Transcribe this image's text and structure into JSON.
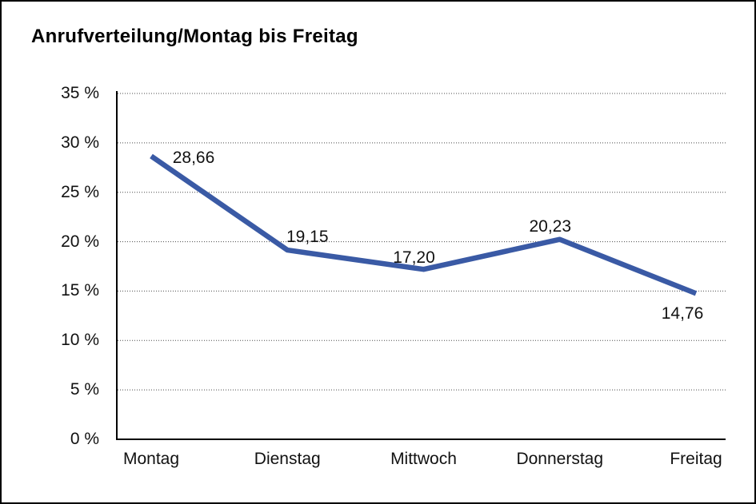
{
  "chart_data": {
    "type": "line",
    "title": "Anrufverteilung/Montag bis Freitag",
    "categories": [
      "Montag",
      "Dienstag",
      "Mittwoch",
      "Donnerstag",
      "Freitag"
    ],
    "values": [
      28.66,
      19.15,
      17.2,
      20.23,
      14.76
    ],
    "value_labels": [
      "28,66",
      "19,15",
      "17,20",
      "20,23",
      "14,76"
    ],
    "y_ticks": [
      "0 %",
      "5 %",
      "10 %",
      "15 %",
      "20 %",
      "25 %",
      "30 %",
      "35 %"
    ],
    "ylim": [
      0,
      35
    ],
    "y_step": 5,
    "xlabel": "",
    "ylabel": "",
    "legend": "none",
    "grid": "horizontal-dotted",
    "colors": {
      "line": "#3A5AA5",
      "axis": "#000000",
      "gridline": "#4a4a4a",
      "text": "#111111",
      "background": "#ffffff",
      "border": "#000000"
    }
  }
}
